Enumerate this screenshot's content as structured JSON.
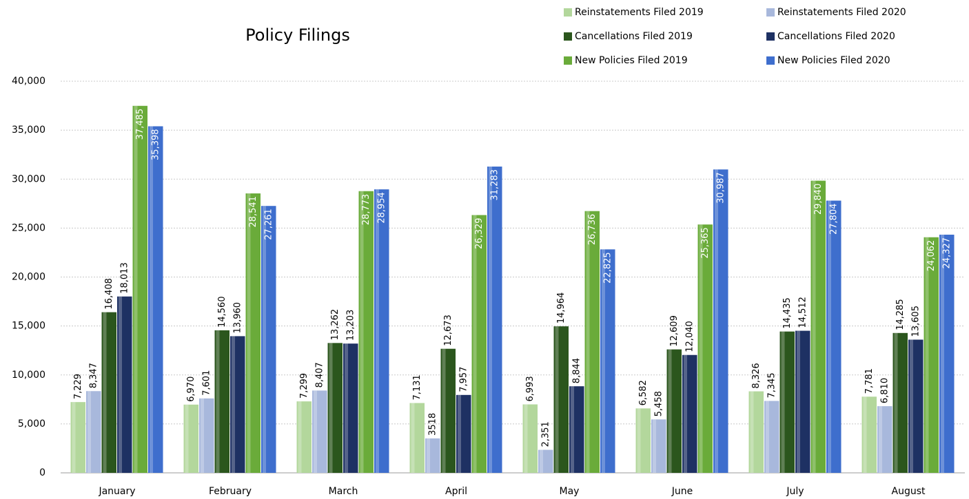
{
  "chart_data": {
    "type": "bar",
    "title": "Policy Filings",
    "categories": [
      "January",
      "February",
      "March",
      "April",
      "May",
      "June",
      "July",
      "August"
    ],
    "series": [
      {
        "name": "Reinstatements Filed 2019",
        "color": "#b3d79c",
        "values": [
          7229,
          6970,
          7299,
          7131,
          6993,
          6582,
          8326,
          7781
        ],
        "value_labels": [
          "7,229",
          "6,970",
          "7,299",
          "7,131",
          "6,993",
          "6,582",
          "8,326",
          "7,781"
        ]
      },
      {
        "name": "Reinstatements Filed 2020",
        "color": "#a8b8dc",
        "values": [
          8347,
          7601,
          8407,
          3518,
          2351,
          5458,
          7345,
          6810
        ],
        "value_labels": [
          "8,347",
          "7,601",
          "8,407",
          "3518",
          "2,351",
          "5,458",
          "7,345",
          "6,810"
        ]
      },
      {
        "name": "Cancellations Filed 2019",
        "color": "#2b561d",
        "values": [
          16408,
          14560,
          13262,
          12673,
          14964,
          12609,
          14435,
          14285
        ],
        "value_labels": [
          "16,408",
          "14,560",
          "13,262",
          "12,673",
          "14,964",
          "12,609",
          "14,435",
          "14,285"
        ]
      },
      {
        "name": "Cancellations Filed 2020",
        "color": "#1e3163",
        "values": [
          18013,
          13960,
          13203,
          7957,
          8844,
          12040,
          14512,
          13605
        ],
        "value_labels": [
          "18,013",
          "13,960",
          "13,203",
          "7,957",
          "8,844",
          "12,040",
          "14,512",
          "13,605"
        ]
      },
      {
        "name": "New Policies Filed 2019",
        "color": "#6aab3a",
        "values": [
          37485,
          28541,
          28773,
          26329,
          26736,
          25365,
          29840,
          24062
        ],
        "value_labels": [
          "37,485",
          "28,541",
          "28,773",
          "26,329",
          "26,736",
          "25,365",
          "29,840",
          "24,062"
        ]
      },
      {
        "name": "New Policies Filed 2020",
        "color": "#3e6ecd",
        "values": [
          35398,
          27261,
          28954,
          31283,
          22825,
          30987,
          27804,
          24327
        ],
        "value_labels": [
          "35,398",
          "27,261",
          "28,954",
          "31,283",
          "22,825",
          "30,987",
          "27,804",
          "24,327"
        ]
      }
    ],
    "ylim": [
      0,
      40000
    ],
    "yticks": [
      0,
      {
        "value": 5000,
        "label": "5,000"
      },
      {
        "value": 10000,
        "label": "10,000"
      },
      {
        "value": 15000,
        "label": "15,000"
      },
      {
        "value": 20000,
        "label": "20,000"
      },
      {
        "value": 25000,
        "label": "25,000"
      },
      {
        "value": 30000,
        "label": "30,000"
      },
      {
        "value": 35000,
        "label": "35,000"
      },
      {
        "value": 40000,
        "label": "40,000"
      }
    ],
    "grid": true,
    "legend": "top-right"
  }
}
